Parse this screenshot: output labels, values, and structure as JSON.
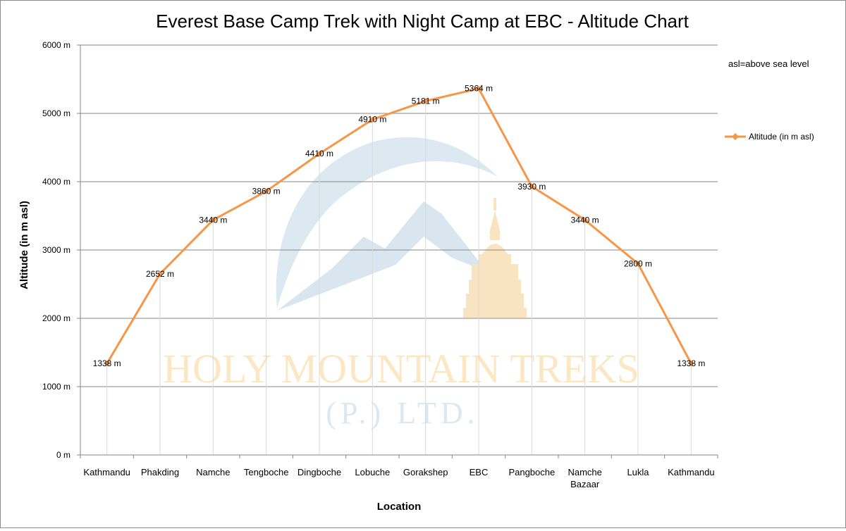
{
  "chart_data": {
    "type": "line",
    "title": "Everest Base Camp Trek with Night Camp at EBC - Altitude Chart",
    "xlabel": "Location",
    "ylabel": "Altitude (in m asl)",
    "ylim": [
      0,
      6000
    ],
    "y_ticks": [
      0,
      1000,
      2000,
      3000,
      4000,
      5000,
      6000
    ],
    "y_tick_labels": [
      "0 m",
      "1000 m",
      "2000 m",
      "3000 m",
      "4000 m",
      "5000 m",
      "6000 m"
    ],
    "categories": [
      [
        "Kathmandu"
      ],
      [
        "Phakding"
      ],
      [
        "Namche"
      ],
      [
        "Tengboche"
      ],
      [
        "Dingboche"
      ],
      [
        "Lobuche"
      ],
      [
        "Gorakshep"
      ],
      [
        "EBC"
      ],
      [
        "Pangboche"
      ],
      [
        "Namche",
        "Bazaar"
      ],
      [
        "Lukla"
      ],
      [
        "Kathmandu"
      ]
    ],
    "series": [
      {
        "name": "Altitude (in  m asl)",
        "color": "#f79646",
        "values": [
          1338,
          2652,
          3440,
          3860,
          4410,
          4910,
          5181,
          5364,
          3930,
          3440,
          2800,
          1338
        ],
        "data_labels": [
          "1338 m",
          "2652 m",
          "3440 m",
          "3860 m",
          "4410 m",
          "4910 m",
          "5181 m",
          "5364 m",
          "3930 m",
          "3440 m",
          "2800 m",
          "1338 m"
        ]
      }
    ],
    "grid": true,
    "legend_position": "right",
    "annotation": "asl=above sea level"
  },
  "watermark": {
    "line1": "HOLY MOUNTAIN TREKS",
    "line2": "(P.) LTD."
  },
  "colors": {
    "line": "#f79646",
    "grid": "#868686",
    "watermark_arc": "#dce9f1",
    "watermark_stupa": "#f9e4c2"
  }
}
